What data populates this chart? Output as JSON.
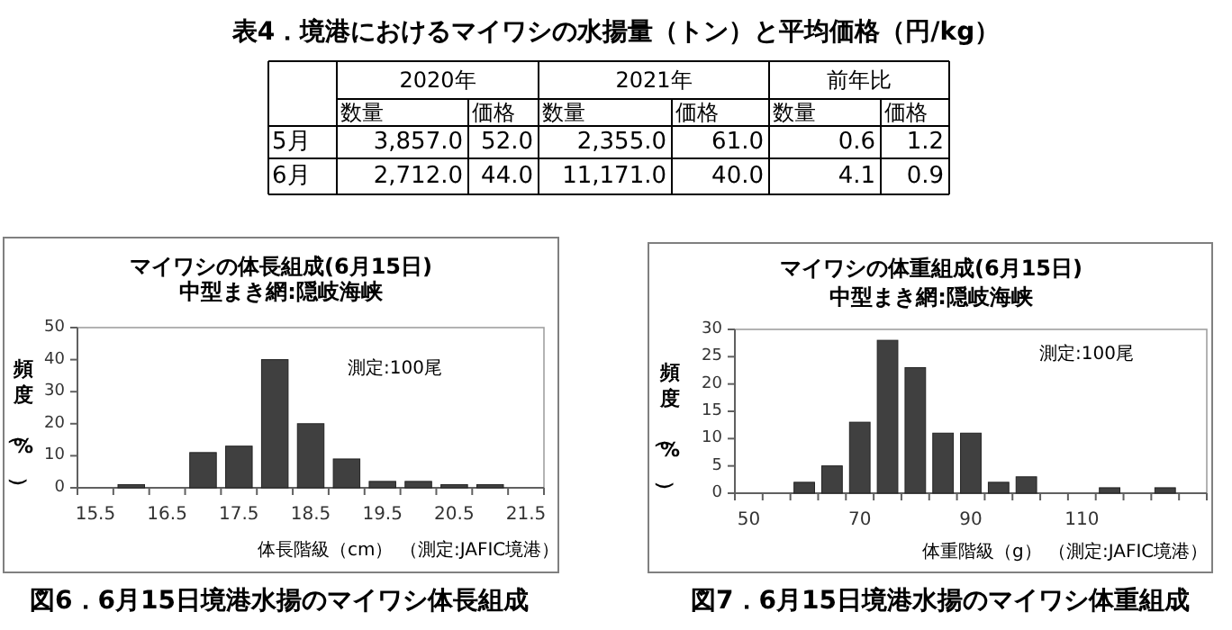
{
  "chart_data": [
    {
      "type": "other",
      "title": "表4．境港におけるマイワシの水揚量（トン）と平均価格（円/kg）",
      "annotations": [
        "2020年",
        "2021年",
        "前年比",
        "数量",
        "価格",
        "数量",
        "価格",
        "数量",
        "価格",
        "5月",
        "3,857.0",
        "52.0",
        "2,355.0",
        "61.0",
        "0.6",
        "1.2",
        "6月",
        "2,712.0",
        "44.0",
        "11,171.0",
        "40.0",
        "4.1",
        "0.9"
      ]
    },
    {
      "type": "bar",
      "title": "マイワシの体長組成(6月15日)",
      "subtitle": "中型まき網:隠岐海峡",
      "xlabel": "体長階級（cm）",
      "ylabel": "頻度（%）",
      "categories": [
        "15.5",
        null,
        "16.5",
        null,
        "17.5",
        null,
        "18.5",
        null,
        "19.5",
        null,
        "20.5",
        null,
        "21.5"
      ],
      "values": [
        0,
        1,
        0,
        11,
        13,
        40,
        20,
        9,
        2,
        2,
        1,
        1,
        0
      ],
      "color": "#404040",
      "ylim": [
        0,
        50
      ],
      "yticks": [
        0,
        10,
        20,
        30,
        40,
        50
      ],
      "annotations": [
        "測定:100尾",
        "（測定:JAFIC境港）",
        "図6．6月15日境港水揚のマイワシ体長組成"
      ]
    },
    {
      "type": "bar",
      "title": "マイワシの体重組成(6月15日)",
      "subtitle": "中型まき網:隠岐海峡",
      "xlabel": "体重階級（g）",
      "ylabel": "頻度（%）",
      "categories": [
        "50",
        null,
        null,
        null,
        "70",
        null,
        null,
        null,
        "90",
        null,
        null,
        null,
        "110",
        null,
        null,
        null,
        null
      ],
      "values": [
        0,
        0,
        2,
        5,
        13,
        28,
        23,
        11,
        11,
        2,
        3,
        0,
        0,
        1,
        0,
        1,
        0
      ],
      "color": "#404040",
      "ylim": [
        0,
        30
      ],
      "yticks": [
        0,
        5,
        10,
        15,
        20,
        25,
        30
      ],
      "annotations": [
        "測定:100尾",
        "（測定:JAFIC境港）",
        "図7．6月15日境港水揚のマイワシ体重組成"
      ]
    }
  ]
}
